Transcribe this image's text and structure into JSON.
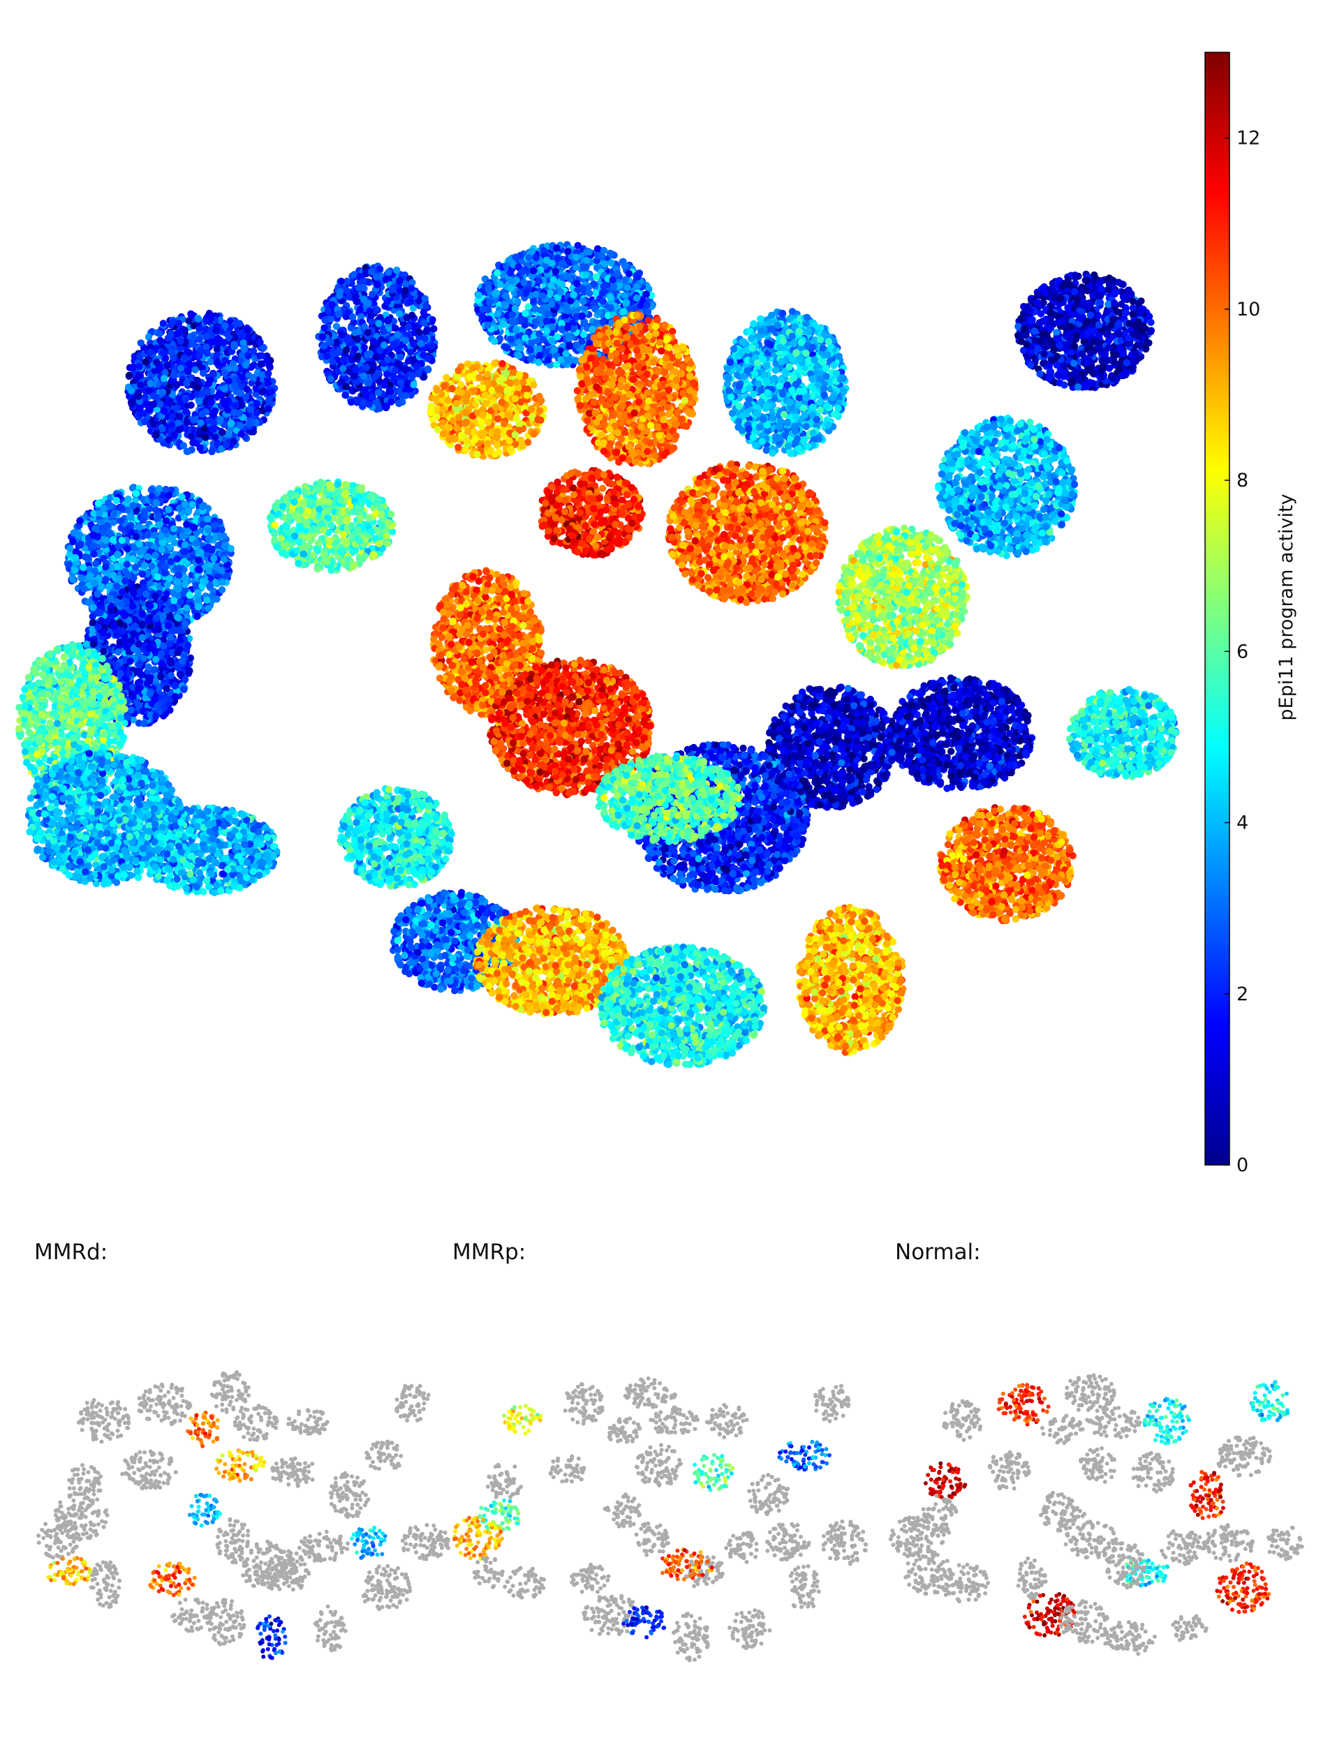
{
  "figure": {
    "panel_labels": {
      "mmrd": "MMRd:",
      "mmrp": "MMRp:",
      "normal": "Normal:"
    }
  },
  "chart_data": [
    {
      "type": "scatter",
      "kind": "tsne-embedding",
      "title": "",
      "color_by": "pEpi11 program activity",
      "colorbar": {
        "label": "pEpi11 program activity",
        "colormap": "jet",
        "range": [
          0,
          13
        ],
        "ticks": [
          0,
          2,
          4,
          6,
          8,
          10,
          12
        ]
      },
      "clusters": [
        {
          "x": -6,
          "y": 46,
          "mean_activity": 3
        },
        {
          "x": -35,
          "y": 41,
          "mean_activity": 2
        },
        {
          "x": -62,
          "y": 34,
          "mean_activity": 2
        },
        {
          "x": -18,
          "y": 30,
          "mean_activity": 9
        },
        {
          "x": 5,
          "y": 33,
          "mean_activity": 10
        },
        {
          "x": 28,
          "y": 34,
          "mean_activity": 4
        },
        {
          "x": 22,
          "y": 11,
          "mean_activity": 10
        },
        {
          "x": -2,
          "y": 14,
          "mean_activity": 11
        },
        {
          "x": -42,
          "y": 12,
          "mean_activity": 6
        },
        {
          "x": -70,
          "y": 7,
          "mean_activity": 3
        },
        {
          "x": -72,
          "y": -8,
          "mean_activity": 2
        },
        {
          "x": -18,
          "y": -6,
          "mean_activity": 10
        },
        {
          "x": -5,
          "y": -19,
          "mean_activity": 11
        },
        {
          "x": 46,
          "y": 1,
          "mean_activity": 7
        },
        {
          "x": 62,
          "y": 18,
          "mean_activity": 4
        },
        {
          "x": 55,
          "y": -20,
          "mean_activity": 1
        },
        {
          "x": 35,
          "y": -22,
          "mean_activity": 1
        },
        {
          "x": 18,
          "y": -33,
          "mean_activity": 2
        },
        {
          "x": 10,
          "y": -30,
          "mean_activity": 6
        },
        {
          "x": -32,
          "y": -36,
          "mean_activity": 5
        },
        {
          "x": -61,
          "y": -38,
          "mean_activity": 4
        },
        {
          "x": -23,
          "y": -52,
          "mean_activity": 3
        },
        {
          "x": -8,
          "y": -55,
          "mean_activity": 9
        },
        {
          "x": 12,
          "y": -62,
          "mean_activity": 5
        },
        {
          "x": 38,
          "y": -58,
          "mean_activity": 9
        },
        {
          "x": 62,
          "y": -40,
          "mean_activity": 10
        },
        {
          "x": -82,
          "y": -18,
          "mean_activity": 6
        },
        {
          "x": -77,
          "y": -33,
          "mean_activity": 4
        },
        {
          "x": 80,
          "y": -20,
          "mean_activity": 5
        },
        {
          "x": 74,
          "y": 42,
          "mean_activity": 1
        }
      ]
    },
    {
      "type": "scatter",
      "kind": "tsne-embedding-subset",
      "label": "MMRd:",
      "highlight_mean_activity": [
        9,
        9,
        4,
        2,
        10,
        4,
        10
      ]
    },
    {
      "type": "scatter",
      "kind": "tsne-embedding-subset",
      "label": "MMRp:",
      "highlight_mean_activity": [
        9,
        6,
        3,
        2,
        8,
        6,
        10
      ]
    },
    {
      "type": "scatter",
      "kind": "tsne-embedding-subset",
      "label": "Normal:",
      "highlight_mean_activity": [
        12,
        10,
        5,
        4,
        11,
        4
      ]
    }
  ]
}
